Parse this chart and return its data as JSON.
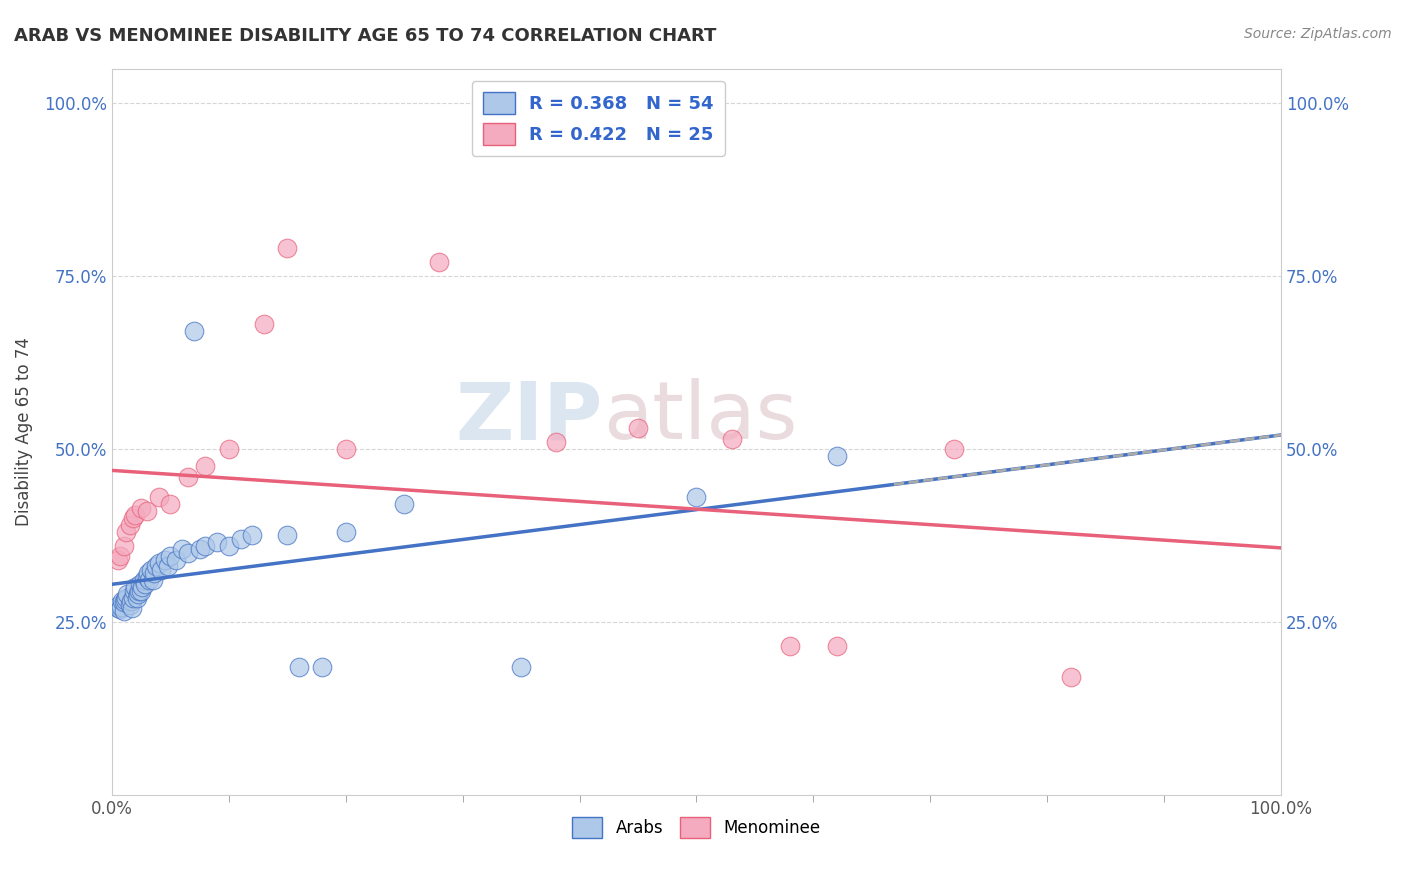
{
  "title": "ARAB VS MENOMINEE DISABILITY AGE 65 TO 74 CORRELATION CHART",
  "source": "Source: ZipAtlas.com",
  "ylabel": "Disability Age 65 to 74",
  "xlim": [
    0.0,
    1.0
  ],
  "ylim": [
    0.0,
    1.05
  ],
  "arab_R": 0.368,
  "arab_N": 54,
  "menominee_R": 0.422,
  "menominee_N": 25,
  "arab_color": "#adc8e8",
  "menominee_color": "#f4aabf",
  "arab_line_color": "#4472c4",
  "menominee_line_color": "#e8607a",
  "legend_text_color": "#3366cc",
  "watermark_color": "#d8e4f0",
  "watermark2_color": "#e8d8dc",
  "background_color": "#ffffff",
  "grid_color": "#cccccc",
  "ytick_color": "#4472c4",
  "title_color": "#333333",
  "arab_scatter_x": [
    0.005,
    0.006,
    0.007,
    0.008,
    0.009,
    0.01,
    0.01,
    0.011,
    0.012,
    0.013,
    0.015,
    0.016,
    0.017,
    0.018,
    0.019,
    0.02,
    0.021,
    0.022,
    0.023,
    0.024,
    0.025,
    0.026,
    0.027,
    0.028,
    0.03,
    0.031,
    0.032,
    0.033,
    0.035,
    0.036,
    0.038,
    0.04,
    0.042,
    0.045,
    0.048,
    0.05,
    0.055,
    0.06,
    0.065,
    0.07,
    0.075,
    0.08,
    0.09,
    0.1,
    0.11,
    0.12,
    0.15,
    0.16,
    0.18,
    0.2,
    0.25,
    0.35,
    0.5,
    0.62
  ],
  "arab_scatter_y": [
    0.27,
    0.275,
    0.268,
    0.272,
    0.28,
    0.265,
    0.278,
    0.282,
    0.285,
    0.29,
    0.275,
    0.28,
    0.27,
    0.285,
    0.295,
    0.3,
    0.285,
    0.29,
    0.295,
    0.305,
    0.295,
    0.3,
    0.31,
    0.305,
    0.315,
    0.32,
    0.31,
    0.325,
    0.31,
    0.32,
    0.33,
    0.335,
    0.325,
    0.34,
    0.33,
    0.345,
    0.34,
    0.355,
    0.35,
    0.67,
    0.355,
    0.36,
    0.365,
    0.36,
    0.37,
    0.375,
    0.375,
    0.185,
    0.185,
    0.38,
    0.42,
    0.185,
    0.43,
    0.49
  ],
  "menominee_scatter_x": [
    0.005,
    0.007,
    0.01,
    0.012,
    0.015,
    0.018,
    0.02,
    0.025,
    0.03,
    0.04,
    0.05,
    0.065,
    0.08,
    0.1,
    0.13,
    0.15,
    0.2,
    0.28,
    0.38,
    0.45,
    0.53,
    0.58,
    0.62,
    0.72,
    0.82
  ],
  "menominee_scatter_y": [
    0.34,
    0.345,
    0.36,
    0.38,
    0.39,
    0.4,
    0.405,
    0.415,
    0.41,
    0.43,
    0.42,
    0.46,
    0.475,
    0.5,
    0.68,
    0.79,
    0.5,
    0.77,
    0.51,
    0.53,
    0.515,
    0.215,
    0.215,
    0.5,
    0.17
  ]
}
